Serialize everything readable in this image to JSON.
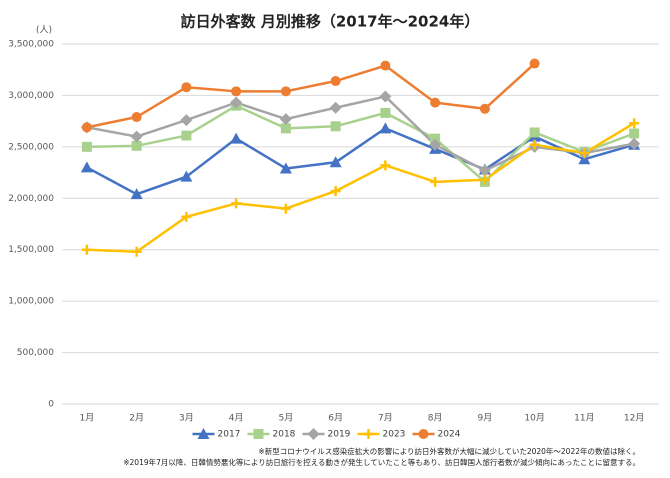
{
  "chart_data": {
    "type": "line",
    "title": "訪日外客数 月別推移（2017年～2024年）",
    "y_unit": "(人)",
    "categories": [
      "1月",
      "2月",
      "3月",
      "4月",
      "5月",
      "6月",
      "7月",
      "8月",
      "9月",
      "10月",
      "11月",
      "12月"
    ],
    "series": [
      {
        "name": "2017",
        "color": "#4472c4",
        "marker": "triangle",
        "values": [
          2300000,
          2040000,
          2210000,
          2580000,
          2290000,
          2350000,
          2680000,
          2480000,
          2280000,
          2600000,
          2380000,
          2520000
        ]
      },
      {
        "name": "2018",
        "color": "#a9d18e",
        "marker": "square",
        "values": [
          2500000,
          2510000,
          2610000,
          2900000,
          2680000,
          2700000,
          2830000,
          2580000,
          2160000,
          2640000,
          2450000,
          2630000
        ]
      },
      {
        "name": "2019",
        "color": "#a5a5a5",
        "marker": "diamond",
        "values": [
          2690000,
          2600000,
          2760000,
          2930000,
          2770000,
          2880000,
          2990000,
          2520000,
          2270000,
          2500000,
          2440000,
          2530000
        ]
      },
      {
        "name": "2023",
        "color": "#ffc000",
        "marker": "plus",
        "values": [
          1500000,
          1480000,
          1820000,
          1950000,
          1900000,
          2070000,
          2320000,
          2160000,
          2180000,
          2520000,
          2440000,
          2730000
        ]
      },
      {
        "name": "2024",
        "color": "#ed7d31",
        "marker": "circle",
        "values": [
          2690000,
          2790000,
          3080000,
          3040000,
          3040000,
          3140000,
          3290000,
          2930000,
          2870000,
          3310000,
          null,
          null
        ]
      }
    ],
    "ylim": [
      0,
      3500000
    ],
    "yticks": [
      0,
      {
        "value": 500000,
        "label": "500,000"
      },
      {
        "value": 1000000,
        "label": "1,000,000"
      },
      {
        "value": 1500000,
        "label": "1,500,000"
      },
      {
        "value": 2000000,
        "label": "2,000,000"
      },
      {
        "value": 2500000,
        "label": "2,500,000"
      },
      {
        "value": 3000000,
        "label": "3,000,000"
      },
      {
        "value": 3500000,
        "label": "3,500,000"
      }
    ],
    "grid": true,
    "legend": "bottom",
    "notes": [
      "※新型コロナウイルス感染症拡大の影響により訪日外客数が大幅に減少していた2020年～2022年の数値は除く。",
      "※2019年7月以降、日韓情勢悪化等により訪日旅行を控える動きが発生していたこと等もあり、訪日韓国人旅行者数が減少傾向にあったことに留意する。"
    ]
  }
}
